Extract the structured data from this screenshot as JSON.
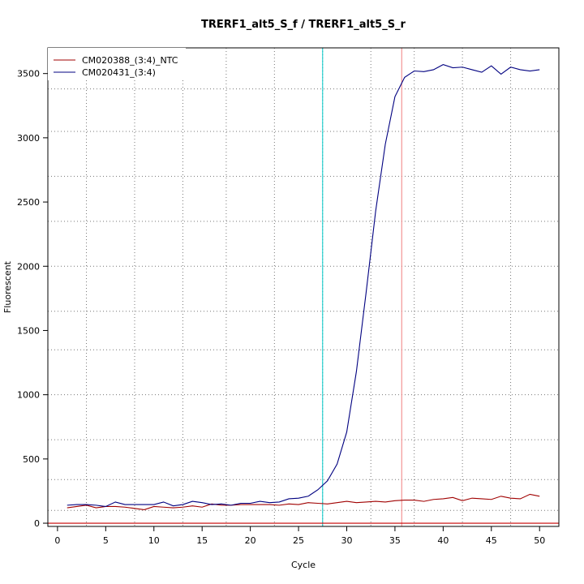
{
  "chart_data": {
    "type": "line",
    "title": "TRERF1_alt5_S_f / TRERF1_alt5_S_r",
    "xlabel": "Cycle",
    "ylabel": "Fluorescent",
    "xlim": [
      -1.0,
      52.0
    ],
    "ylim": [
      -25,
      3700
    ],
    "x_ticks": [
      0,
      5,
      10,
      15,
      20,
      25,
      30,
      35,
      40,
      45,
      50
    ],
    "x_tick_labels": [
      "0",
      "5",
      "10",
      "15",
      "20",
      "25",
      "30",
      "35",
      "40",
      "45",
      "50"
    ],
    "y_ticks": [
      0,
      500,
      1000,
      1500,
      2000,
      2500,
      3000,
      3500
    ],
    "y_tick_labels": [
      "0",
      "500",
      "1000",
      "1500",
      "2000",
      "2500",
      "3000",
      "3500"
    ],
    "x_dotted_grid": [
      3,
      8,
      13,
      17.5,
      22.5,
      27.5,
      32.5,
      37,
      42,
      47
    ],
    "y_dotted_grid": [
      100,
      340,
      650,
      1000,
      1350,
      1650,
      2000,
      2350,
      2700,
      3050,
      3380
    ],
    "grid": true,
    "legend_position": "top-left",
    "x": [
      1,
      2,
      3,
      4,
      5,
      6,
      7,
      8,
      9,
      10,
      11,
      12,
      13,
      14,
      15,
      16,
      17,
      18,
      19,
      20,
      21,
      22,
      23,
      24,
      25,
      26,
      27,
      28,
      29,
      30,
      31,
      32,
      33,
      34,
      35,
      36,
      37,
      38,
      39,
      40,
      41,
      42,
      43,
      44,
      45,
      46,
      47,
      48,
      49,
      50
    ],
    "series": [
      {
        "name": "CM020388_(3:4)_NTC",
        "color": "#a00000",
        "values": [
          120,
          130,
          140,
          120,
          130,
          130,
          125,
          115,
          105,
          130,
          125,
          120,
          125,
          135,
          125,
          150,
          140,
          140,
          145,
          145,
          145,
          145,
          140,
          150,
          145,
          160,
          155,
          150,
          160,
          170,
          160,
          165,
          170,
          165,
          175,
          180,
          180,
          170,
          185,
          190,
          200,
          175,
          195,
          190,
          185,
          210,
          195,
          190,
          225,
          210
        ]
      },
      {
        "name": "CM020431_(3:4)",
        "color": "#000080",
        "values": [
          140,
          145,
          145,
          140,
          130,
          165,
          145,
          145,
          145,
          145,
          165,
          135,
          145,
          170,
          160,
          145,
          150,
          140,
          155,
          155,
          170,
          160,
          165,
          190,
          195,
          210,
          260,
          330,
          460,
          710,
          1180,
          1790,
          2430,
          2950,
          3320,
          3470,
          3520,
          3515,
          3530,
          3570,
          3545,
          3550,
          3530,
          3510,
          3560,
          3495,
          3550,
          3530,
          3520,
          3530
        ]
      }
    ],
    "reference_lines": [
      {
        "orientation": "vertical",
        "x": 27.5,
        "color": "#00c8c8"
      },
      {
        "orientation": "vertical",
        "x": 35.7,
        "color": "#f08080"
      },
      {
        "orientation": "horizontal",
        "y": 0,
        "color": "#c80000"
      }
    ]
  }
}
